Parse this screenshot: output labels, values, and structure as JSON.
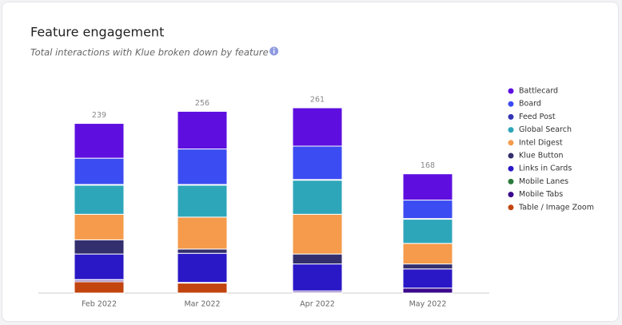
{
  "chart_data": {
    "type": "stacked-bar",
    "title": "Feature engagement",
    "subtitle": "Total interactions with Klue broken down by feature",
    "categories": [
      "Feb 2022",
      "Mar 2022",
      "Apr 2022",
      "May 2022"
    ],
    "totals": [
      239,
      256,
      261,
      168
    ],
    "series": [
      {
        "name": "Battlecard",
        "color": "#5e0fe0",
        "values": [
          49,
          53,
          54,
          37
        ]
      },
      {
        "name": "Board",
        "color": "#3b4cf2",
        "values": [
          37,
          50,
          47,
          26
        ]
      },
      {
        "name": "Feed Post",
        "color": "#3434b4",
        "values": [
          1,
          1,
          1,
          1
        ]
      },
      {
        "name": "Global Search",
        "color": "#2ea6ba",
        "values": [
          41,
          45,
          48,
          34
        ]
      },
      {
        "name": "Intel Digest",
        "color": "#f59b4b",
        "values": [
          36,
          45,
          56,
          29
        ]
      },
      {
        "name": "Klue Button",
        "color": "#332f6e",
        "values": [
          20,
          6,
          14,
          7
        ]
      },
      {
        "name": "Links in Cards",
        "color": "#2a18c6",
        "values": [
          36,
          41,
          38,
          27
        ]
      },
      {
        "name": "Mobile Lanes",
        "color": "#2a7a3c",
        "values": [
          1,
          0,
          0,
          0
        ]
      },
      {
        "name": "Mobile Tabs",
        "color": "#3b0a8c",
        "values": [
          2,
          1,
          2,
          7
        ]
      },
      {
        "name": "Table / Image Zoom",
        "color": "#c2440f",
        "values": [
          16,
          14,
          1,
          0
        ]
      }
    ]
  }
}
